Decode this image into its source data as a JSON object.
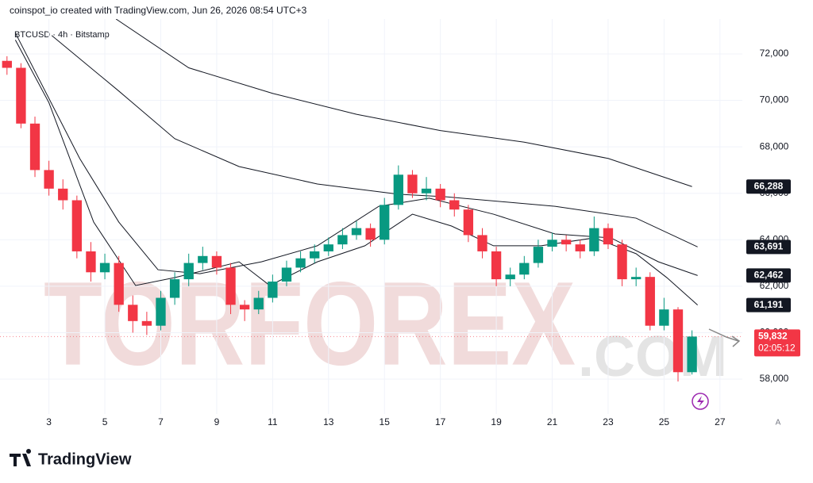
{
  "header": {
    "attribution": "coinspot_io created with TradingView.com, Jun 26, 2026 08:54 UTC+3",
    "symbol": "BTCUSD · 4h · Bitstamp"
  },
  "watermark": {
    "main": "TORFOREX",
    "suffix": ".COM"
  },
  "footer": {
    "brand": "TradingView"
  },
  "chart_data": {
    "type": "candlestick",
    "up_color": "#089981",
    "down_color": "#f23645",
    "x": [
      1.5,
      2,
      2.5,
      3,
      3.5,
      4,
      4.5,
      5,
      5.5,
      6,
      6.5,
      7,
      7.5,
      8,
      8.5,
      9,
      9.5,
      10,
      10.5,
      11,
      11.5,
      12,
      12.5,
      13,
      13.5,
      14,
      14.5,
      15,
      15.5,
      16,
      16.5,
      17,
      17.5,
      18,
      18.5,
      19,
      19.5,
      20,
      20.5,
      21,
      21.5,
      22,
      22.5,
      23,
      23.5,
      24,
      24.5,
      25,
      25.5,
      26
    ],
    "open": [
      71700,
      71400,
      69000,
      67000,
      66200,
      65700,
      63500,
      62600,
      63000,
      61200,
      60500,
      60300,
      61500,
      62300,
      63000,
      63300,
      62800,
      61200,
      61000,
      61500,
      62200,
      62800,
      63200,
      63500,
      63800,
      64200,
      64500,
      64000,
      65500,
      66800,
      66000,
      66200,
      65700,
      65300,
      64200,
      63500,
      62300,
      62500,
      63000,
      63700,
      64000,
      63800,
      63500,
      64500,
      63800,
      62300,
      62400,
      60300,
      61000,
      58300
    ],
    "high": [
      71900,
      71600,
      69300,
      67400,
      66600,
      65900,
      63900,
      63400,
      63300,
      61600,
      60900,
      61800,
      62600,
      63400,
      63700,
      63500,
      63000,
      61400,
      61800,
      62500,
      63100,
      63500,
      63800,
      64100,
      64500,
      64800,
      64700,
      65800,
      67200,
      67000,
      66700,
      66400,
      66000,
      65500,
      64500,
      63700,
      62800,
      63300,
      64000,
      64300,
      64200,
      64000,
      65000,
      64700,
      64000,
      62800,
      62600,
      61500,
      61100,
      60100
    ],
    "low": [
      71100,
      68800,
      66700,
      65900,
      65300,
      63200,
      62200,
      62300,
      60900,
      60000,
      59900,
      60100,
      61200,
      62000,
      62700,
      62500,
      60800,
      60500,
      60800,
      61300,
      62000,
      62600,
      63000,
      63300,
      63600,
      64000,
      63700,
      63800,
      65300,
      65800,
      65700,
      65400,
      65000,
      63900,
      63200,
      62000,
      62000,
      62300,
      62800,
      63500,
      63500,
      63200,
      63300,
      63600,
      62000,
      62000,
      60100,
      60100,
      57900,
      58200
    ],
    "close": [
      71400,
      69000,
      67000,
      66200,
      65700,
      63500,
      62600,
      63000,
      61200,
      60500,
      60300,
      61500,
      62300,
      63000,
      63300,
      62800,
      61200,
      61000,
      61500,
      62200,
      62800,
      63200,
      63500,
      63800,
      64200,
      64500,
      64000,
      65500,
      66800,
      66000,
      66200,
      65700,
      65300,
      64200,
      63500,
      62300,
      62500,
      63000,
      63700,
      64000,
      63800,
      63500,
      64500,
      63800,
      62300,
      62400,
      60300,
      61000,
      58300,
      59832
    ],
    "overlays": [
      {
        "color": "#131722",
        "x": [
          5.4,
          8,
          11,
          14,
          17,
          20,
          23,
          26
        ],
        "values": [
          73500,
          71400,
          70300,
          69400,
          68700,
          68200,
          67500,
          66288
        ]
      },
      {
        "color": "#131722",
        "x": [
          3.1,
          5.5,
          7.5,
          9.8,
          12.6,
          15.5,
          17.2,
          21.1,
          24,
          26.2
        ],
        "values": [
          72790,
          70400,
          68350,
          67150,
          66400,
          65960,
          65850,
          65440,
          64930,
          63691
        ]
      },
      {
        "color": "#131722",
        "x": [
          1.8,
          4.1,
          5.5,
          6.9,
          8.4,
          10.6,
          12.6,
          14.8,
          16.6,
          18.9,
          21.1,
          23.1,
          24.8,
          26.2
        ],
        "values": [
          72900,
          67500,
          64760,
          62710,
          62540,
          63050,
          63740,
          65440,
          65790,
          65100,
          64250,
          64080,
          63050,
          62462
        ]
      },
      {
        "color": "#131722",
        "x": [
          1.8,
          3,
          4.6,
          6.1,
          7.5,
          9.8,
          10.9,
          12.6,
          14.3,
          16,
          17.4,
          18.9,
          20.6,
          22.5,
          24,
          25.1,
          26.2
        ],
        "values": [
          72600,
          69900,
          64760,
          62030,
          62370,
          63050,
          62030,
          63050,
          63740,
          65100,
          64590,
          63740,
          63740,
          64080,
          63400,
          62370,
          61191
        ]
      }
    ],
    "price_labels": [
      {
        "value": 66288,
        "label": "66,288"
      },
      {
        "value": 63691,
        "label": "63,691"
      },
      {
        "value": 62462,
        "label": "62,462"
      },
      {
        "value": 61191,
        "label": "61,191"
      }
    ],
    "last_price": {
      "value": 59832,
      "label": "59,832",
      "countdown": "02:05:12",
      "color": "#f23645"
    },
    "xlim": [
      1.25,
      27.8
    ],
    "xticks": [
      3,
      5,
      7,
      9,
      11,
      13,
      15,
      17,
      19,
      21,
      23,
      25,
      27
    ],
    "ylim": [
      56500,
      73500
    ],
    "yticks": [
      {
        "value": 58000,
        "label": "58,000"
      },
      {
        "value": 60000,
        "label": "60,000"
      },
      {
        "value": 62000,
        "label": "62,000"
      },
      {
        "value": 64000,
        "label": "64,000"
      },
      {
        "value": 66000,
        "label": "66,000"
      },
      {
        "value": 68000,
        "label": "68,000"
      },
      {
        "value": 70000,
        "label": "70,000"
      },
      {
        "value": 72000,
        "label": "72,000"
      }
    ],
    "scale_button": "A"
  }
}
